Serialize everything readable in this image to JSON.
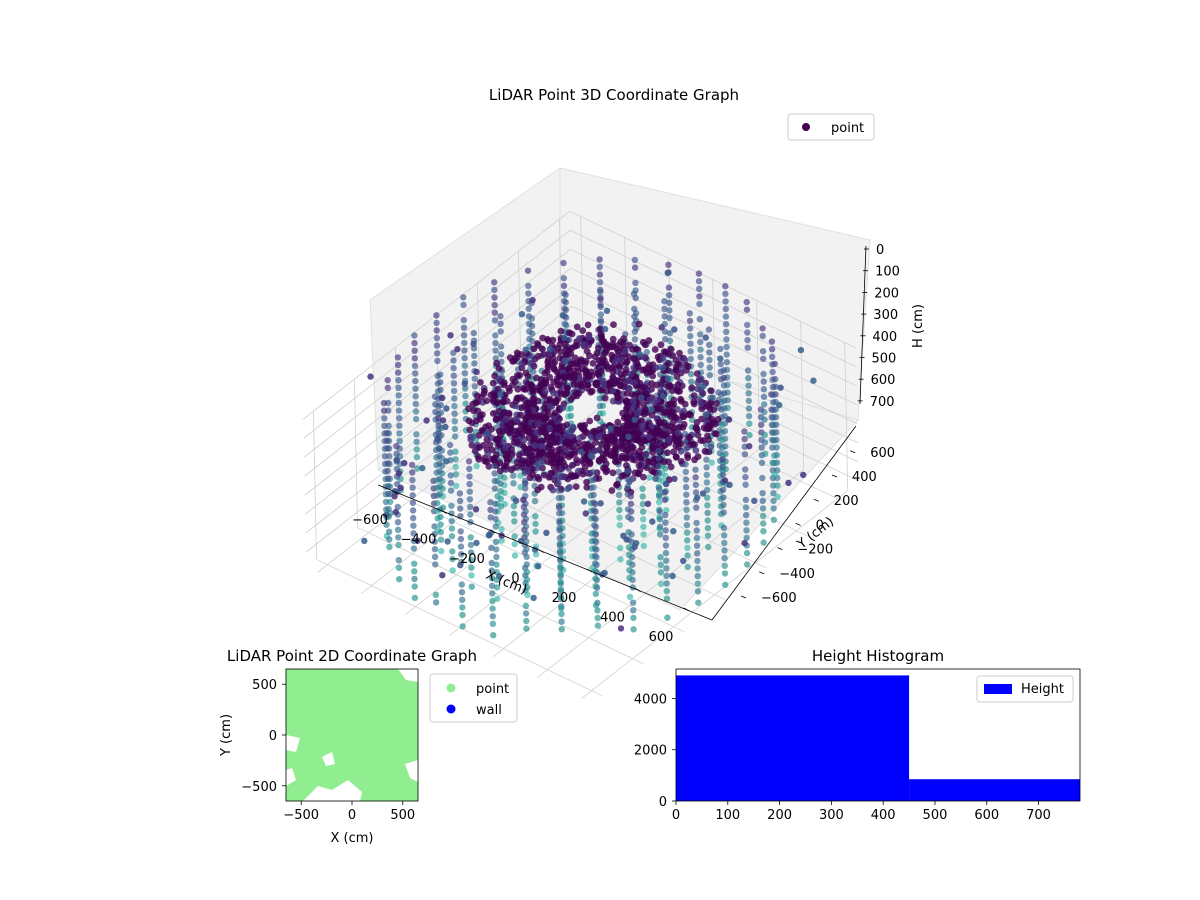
{
  "colors": {
    "cloud_viridis": [
      "#440154",
      "#46317e",
      "#3b528b",
      "#365f8d",
      "#2c728e",
      "#21918c",
      "#35b5a8"
    ],
    "point_2d": "#90ee90",
    "wall": "#0000ff",
    "histogram": "#0000ff",
    "pane": "#f2f2f2",
    "grid": "#d0d0d0"
  },
  "chart_data": [
    {
      "type": "scatter",
      "title": "LiDAR Point 3D Coordinate Graph",
      "xlabel": "X (cm)",
      "ylabel": "Y (cm)",
      "zlabel": "H (cm)",
      "x_ticks": [
        "−600",
        "−400",
        "−200",
        "0",
        "200",
        "400",
        "600"
      ],
      "y_ticks": [
        "−600",
        "−400",
        "−200",
        "0",
        "200",
        "400",
        "600"
      ],
      "z_ticks": [
        "0",
        "100",
        "200",
        "300",
        "400",
        "500",
        "600",
        "700"
      ],
      "xlim": [
        -650,
        650
      ],
      "ylim": [
        -650,
        650
      ],
      "zlim": [
        0,
        780
      ],
      "z_axis_inverted": true,
      "grid": true,
      "legend": {
        "entries": [
          "point"
        ],
        "position": "top-right"
      },
      "series": [
        {
          "name": "point",
          "structure": "three concentric rings of vertical scan columns, radii 650/480/280 cm over heights 0–700 cm, plus a dense curved roof cluster near height 150–250 cm",
          "ring_radii": [
            650,
            480,
            280
          ],
          "column_heights": [
            0,
            40,
            80,
            120,
            160,
            200,
            240,
            280,
            320,
            360,
            400,
            440,
            480,
            520,
            560,
            600,
            640,
            700
          ]
        }
      ]
    },
    {
      "type": "scatter",
      "title": "LiDAR Point 2D Coordinate Graph",
      "xlabel": "X (cm)",
      "ylabel": "Y (cm)",
      "x_ticks": [
        "−500",
        "0",
        "500"
      ],
      "y_ticks": [
        "500",
        "0",
        "−500"
      ],
      "xlim": [
        -650,
        650
      ],
      "ylim": [
        -650,
        650
      ],
      "legend": {
        "entries": [
          "point",
          "wall"
        ],
        "position": "outside-right"
      },
      "series": [
        {
          "name": "point"
        },
        {
          "name": "wall"
        }
      ]
    },
    {
      "type": "bar",
      "title": "Height Histogram",
      "x_ticks": [
        "0",
        "100",
        "200",
        "300",
        "400",
        "500",
        "600",
        "700"
      ],
      "y_ticks": [
        "0",
        "2000",
        "4000"
      ],
      "xlim": [
        0,
        780
      ],
      "ylim": [
        0,
        5150
      ],
      "legend": {
        "entries": [
          "Height"
        ],
        "position": "top-right"
      },
      "series": [
        {
          "name": "Height",
          "bins": [
            {
              "from": 0,
              "to": 450,
              "count": 4900
            },
            {
              "from": 450,
              "to": 780,
              "count": 850
            }
          ]
        }
      ]
    }
  ]
}
